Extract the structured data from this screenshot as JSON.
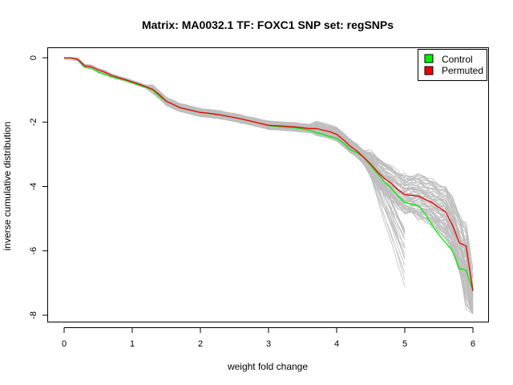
{
  "chart_data": {
    "type": "line",
    "title": "Matrix: MA0032.1 TF: FOXC1 SNP set: regSNPs",
    "xlabel": "weight fold change",
    "ylabel": "inverse cumulative distribution",
    "xlim": [
      0,
      6
    ],
    "ylim": [
      -8,
      0
    ],
    "x_ticks": [
      "0",
      "1",
      "2",
      "3",
      "4",
      "5",
      "6"
    ],
    "y_ticks": [
      "0",
      "-2",
      "-4",
      "-6",
      "-8"
    ],
    "legend": {
      "position": "top-right",
      "entries": [
        "Control",
        "Permuted"
      ]
    },
    "colors": {
      "Control": "#00ee00",
      "Permuted": "#ee0000",
      "background_lines": "#bebebe"
    },
    "series": [
      {
        "name": "Control",
        "color": "#00ee00",
        "x": [
          0.0,
          0.1,
          0.2,
          0.3,
          0.4,
          0.5,
          0.6,
          0.7,
          0.8,
          0.9,
          1.0,
          1.1,
          1.2,
          1.3,
          1.4,
          1.5,
          1.6,
          1.7,
          1.8,
          1.9,
          2.0,
          2.1,
          2.2,
          2.3,
          2.4,
          2.5,
          2.6,
          2.7,
          2.8,
          2.9,
          3.0,
          3.2,
          3.4,
          3.6,
          3.7,
          3.8,
          3.9,
          4.0,
          4.1,
          4.2,
          4.3,
          4.4,
          4.5,
          4.6,
          4.7,
          4.8,
          4.9,
          5.0,
          5.1,
          5.2,
          5.3,
          5.4,
          5.5,
          5.6,
          5.7,
          5.8,
          5.9,
          6.0
        ],
        "y": [
          0.0,
          0.0,
          -0.05,
          -0.3,
          -0.33,
          -0.45,
          -0.52,
          -0.6,
          -0.65,
          -0.7,
          -0.78,
          -0.85,
          -0.92,
          -1.0,
          -1.2,
          -1.35,
          -1.45,
          -1.55,
          -1.6,
          -1.65,
          -1.7,
          -1.72,
          -1.75,
          -1.78,
          -1.82,
          -1.86,
          -1.9,
          -1.95,
          -2.0,
          -2.05,
          -2.1,
          -2.15,
          -2.18,
          -2.25,
          -2.32,
          -2.38,
          -2.45,
          -2.5,
          -2.65,
          -2.85,
          -2.95,
          -3.1,
          -3.35,
          -3.6,
          -3.85,
          -4.05,
          -4.3,
          -4.5,
          -4.55,
          -4.6,
          -4.85,
          -5.2,
          -5.5,
          -5.75,
          -6.0,
          -6.55,
          -6.6,
          -7.25
        ]
      },
      {
        "name": "Permuted",
        "color": "#ee0000",
        "x": [
          0.0,
          0.1,
          0.2,
          0.3,
          0.4,
          0.5,
          0.6,
          0.7,
          0.8,
          0.9,
          1.0,
          1.1,
          1.2,
          1.3,
          1.4,
          1.5,
          1.6,
          1.7,
          1.8,
          1.9,
          2.0,
          2.1,
          2.2,
          2.3,
          2.4,
          2.5,
          2.6,
          2.7,
          2.8,
          2.9,
          3.0,
          3.2,
          3.4,
          3.6,
          3.7,
          3.8,
          3.9,
          4.0,
          4.1,
          4.2,
          4.3,
          4.4,
          4.5,
          4.6,
          4.7,
          4.8,
          4.9,
          5.0,
          5.1,
          5.2,
          5.3,
          5.4,
          5.5,
          5.6,
          5.7,
          5.8,
          5.9,
          6.0
        ],
        "y": [
          0.0,
          0.0,
          -0.05,
          -0.25,
          -0.28,
          -0.38,
          -0.45,
          -0.55,
          -0.62,
          -0.68,
          -0.75,
          -0.82,
          -0.9,
          -0.98,
          -1.15,
          -1.35,
          -1.45,
          -1.55,
          -1.6,
          -1.65,
          -1.7,
          -1.72,
          -1.75,
          -1.78,
          -1.82,
          -1.86,
          -1.9,
          -1.95,
          -2.0,
          -2.05,
          -2.1,
          -2.12,
          -2.15,
          -2.2,
          -2.2,
          -2.25,
          -2.3,
          -2.38,
          -2.55,
          -2.75,
          -2.9,
          -3.1,
          -3.3,
          -3.55,
          -3.75,
          -3.9,
          -4.1,
          -4.25,
          -4.28,
          -4.3,
          -4.4,
          -4.5,
          -4.65,
          -4.8,
          -5.2,
          -5.75,
          -5.85,
          -7.25
        ]
      }
    ]
  }
}
